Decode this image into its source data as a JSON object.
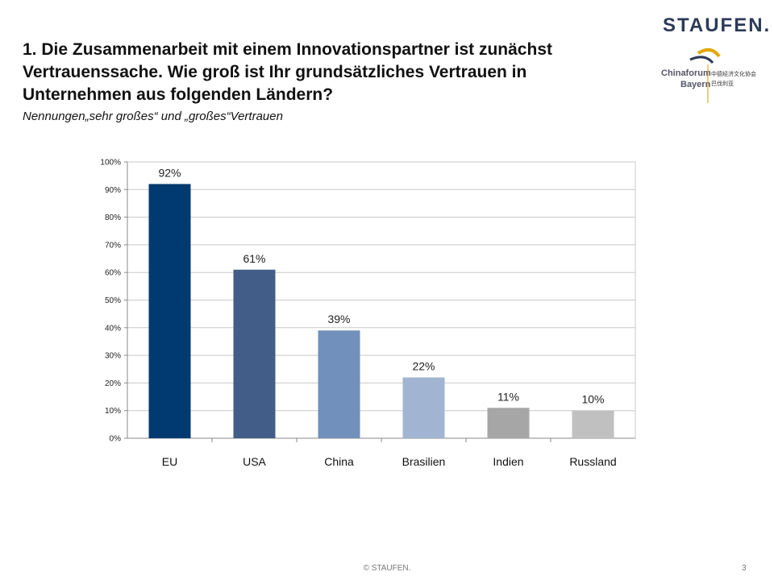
{
  "header": {
    "title": "1. Die Zusammenarbeit mit einem Innovationspartner ist zunächst Vertrauenssache. Wie groß ist Ihr grundsätzliches Vertrauen in Unternehmen aus folgenden Ländern?",
    "subtitle": "Nennungen„sehr großes“ und „großes“Vertrauen"
  },
  "logo": {
    "brand": "STAUFEN.",
    "sub_line1": "Chinaforum",
    "sub_line2": "Bayern",
    "cjk_line1": "中德经济文化协会",
    "cjk_line2": "巴伐利亚"
  },
  "footer": {
    "copyright": "© STAUFEN.",
    "page": "3"
  },
  "chart_data": {
    "type": "bar",
    "categories": [
      "EU",
      "USA",
      "China",
      "Brasilien",
      "Indien",
      "Russland"
    ],
    "values": [
      92,
      61,
      39,
      22,
      11,
      10
    ],
    "data_labels": [
      "92%",
      "61%",
      "39%",
      "22%",
      "11%",
      "10%"
    ],
    "colors": [
      "#003a70",
      "#425e88",
      "#7190bb",
      "#a1b5d3",
      "#a6a6a6",
      "#c0c0c0"
    ],
    "ylim": [
      0,
      100
    ],
    "yticks": [
      "0%",
      "10%",
      "20%",
      "30%",
      "40%",
      "50%",
      "60%",
      "70%",
      "80%",
      "90%",
      "100%"
    ],
    "grid": true,
    "xlabel": "",
    "ylabel": ""
  }
}
